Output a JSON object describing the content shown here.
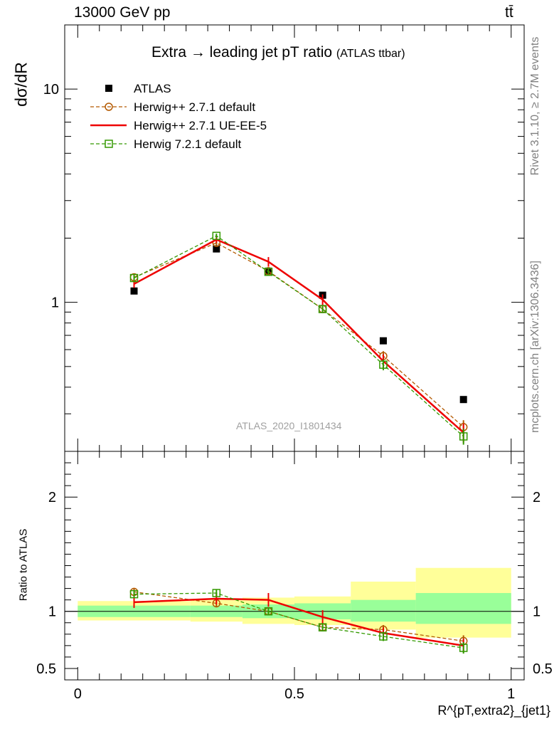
{
  "header": {
    "energy_label": "13000 GeV pp",
    "process_label": "tt̄"
  },
  "side_text": {
    "rivet": "Rivet 3.1.10, ≥ 2.7M events",
    "mcplots": "mcplots.cern.ch [arXiv:1306.3436]"
  },
  "chart_data": [
    {
      "type": "line",
      "panel": "main",
      "title": "Extra → leading jet pT ratio",
      "title_suffix": "(ATLAS ttbar)",
      "ylabel": "dσ/dR",
      "yscale": "log",
      "ylim": [
        0.2,
        20
      ],
      "xlim": [
        -0.03,
        1.03
      ],
      "y_ticks": [
        "1",
        "10"
      ],
      "watermark": "ATLAS_2020_I1801434",
      "legend_position": "top-left",
      "bin_edges": [
        0.0,
        0.26,
        0.38,
        0.5,
        0.63,
        0.78,
        1.0
      ],
      "x": [
        0.13,
        0.32,
        0.44,
        0.565,
        0.705,
        0.89
      ],
      "series": [
        {
          "name": "ATLAS",
          "color": "#000000",
          "marker": "square",
          "values": [
            1.13,
            1.78,
            1.4,
            1.08,
            0.66,
            0.35
          ]
        },
        {
          "name": "Herwig++ 2.7.1 default",
          "color": "#b35900",
          "marker": "circle-open",
          "dashed": true,
          "values": [
            1.31,
            1.9,
            1.4,
            0.93,
            0.56,
            0.26
          ],
          "errors": [
            0.04,
            0.05,
            0.04,
            0.03,
            0.03,
            0.02
          ]
        },
        {
          "name": "Herwig++ 2.7.1 UE-EE-5",
          "color": "#ee0000",
          "marker": "none",
          "dashed": false,
          "values": [
            1.22,
            1.97,
            1.55,
            1.03,
            0.53,
            0.245
          ],
          "errors": [
            0.05,
            0.07,
            0.08,
            0.06,
            0.04,
            0.025
          ]
        },
        {
          "name": "Herwig 7.2.1 default",
          "color": "#339900",
          "marker": "square-open",
          "dashed": true,
          "values": [
            1.3,
            2.05,
            1.39,
            0.93,
            0.51,
            0.235
          ],
          "errors": [
            0.04,
            0.05,
            0.04,
            0.03,
            0.03,
            0.02
          ]
        }
      ]
    },
    {
      "type": "line",
      "panel": "ratio",
      "ylabel": "Ratio to ATLAS",
      "xlabel": "R^{pT,extra2}_{jet1}",
      "ylim": [
        0.4,
        2.4
      ],
      "xlim": [
        -0.03,
        1.03
      ],
      "x_ticks": [
        "0",
        "0.5",
        "1"
      ],
      "y_ticks": [
        "0.5",
        "1",
        "2"
      ],
      "bands": {
        "bin_edges": [
          0.0,
          0.26,
          0.38,
          0.5,
          0.63,
          0.78,
          1.0
        ],
        "green_color": "#99ff99",
        "yellow_color": "#ffff99",
        "green_lo": [
          0.95,
          0.95,
          0.94,
          0.93,
          0.91,
          0.89
        ],
        "green_hi": [
          1.05,
          1.05,
          1.06,
          1.07,
          1.1,
          1.16
        ],
        "yellow_lo": [
          0.92,
          0.91,
          0.89,
          0.88,
          0.84,
          0.77
        ],
        "yellow_hi": [
          1.09,
          1.1,
          1.12,
          1.13,
          1.26,
          1.38
        ]
      },
      "x": [
        0.13,
        0.32,
        0.44,
        0.565,
        0.705,
        0.89
      ],
      "series": [
        {
          "name": "Herwig++ 2.7.1 default",
          "color": "#b35900",
          "marker": "circle-open",
          "dashed": true,
          "values": [
            1.17,
            1.07,
            1.0,
            0.86,
            0.84,
            0.74
          ],
          "errors": [
            0.03,
            0.03,
            0.03,
            0.03,
            0.04,
            0.05
          ]
        },
        {
          "name": "Herwig++ 2.7.1 UE-EE-5",
          "color": "#ee0000",
          "marker": "none",
          "dashed": false,
          "values": [
            1.08,
            1.11,
            1.1,
            0.95,
            0.81,
            0.7
          ],
          "errors": [
            0.05,
            0.05,
            0.06,
            0.06,
            0.05,
            0.06
          ]
        },
        {
          "name": "Herwig 7.2.1 default",
          "color": "#339900",
          "marker": "square-open",
          "dashed": true,
          "values": [
            1.15,
            1.16,
            1.0,
            0.86,
            0.78,
            0.68
          ],
          "errors": [
            0.03,
            0.03,
            0.03,
            0.03,
            0.04,
            0.05
          ]
        }
      ]
    }
  ]
}
